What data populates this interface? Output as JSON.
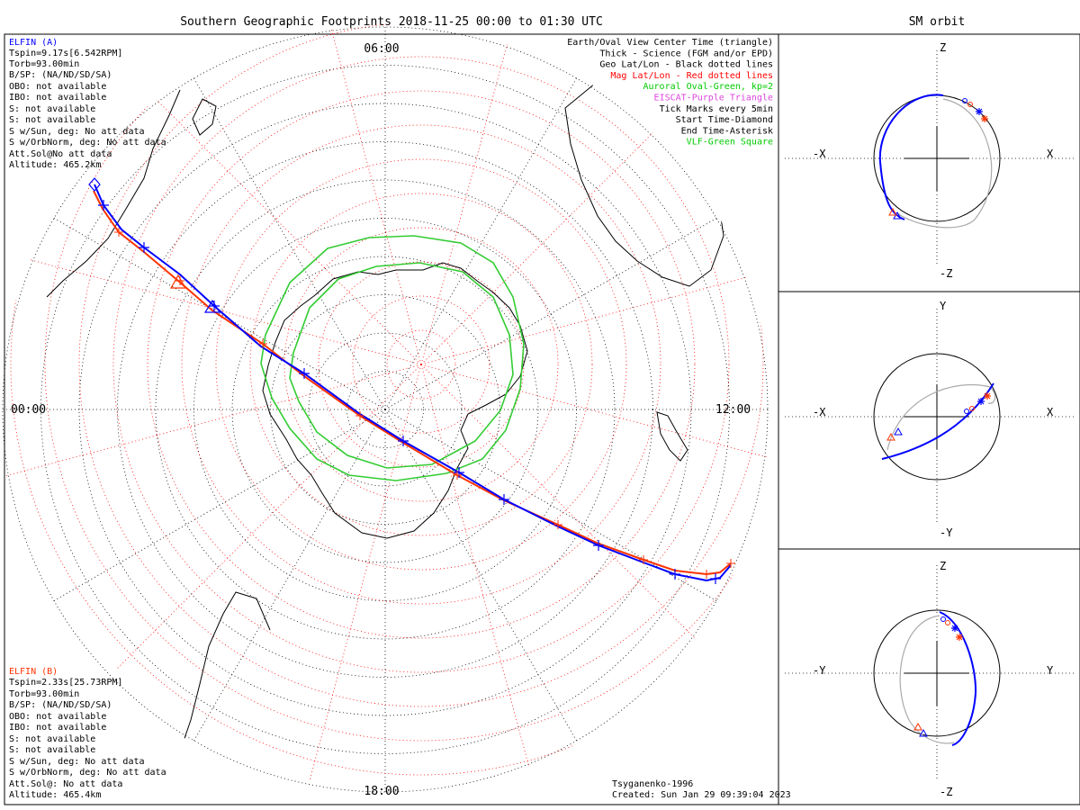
{
  "main_title": "Southern Geographic Footprints 2018-11-25 00:00 to 01:30 UTC",
  "side_title": "SM orbit",
  "clock_labels": {
    "top": "06:00",
    "left": "00:00",
    "right": "12:00",
    "bottom": "18:00"
  },
  "sat_a": {
    "name": "ELFIN (A)",
    "lines": [
      "Tspin=9.17s[6.542RPM]",
      "Torb=93.00min",
      "B/SP: (NA/ND/SD/SA)",
      "OBO: not available",
      "IBO: not available",
      "S: not available",
      "S: not available",
      "S w/Sun, deg: No att data",
      "S w/OrbNorm, deg: No att data",
      "Att.Sol@No att data",
      "Altitude: 465.2km"
    ]
  },
  "sat_b": {
    "name": "ELFIN (B)",
    "lines": [
      "Tspin=2.33s[25.73RPM]",
      "Torb=93.00min",
      "B/SP: (NA/ND/SD/SA)",
      "OBO: not available",
      "IBO: not available",
      "S: not available",
      "S: not available",
      "S w/Sun, deg: No att data",
      "S w/OrbNorm, deg: No att data",
      "Att.Sol@: No att data",
      "Altitude: 465.4km"
    ]
  },
  "legend": [
    {
      "text": "Earth/Oval View Center Time (triangle)",
      "color": "#000000"
    },
    {
      "text": "Thick - Science (FGM and/or EPD)",
      "color": "#000000"
    },
    {
      "text": "Geo Lat/Lon - Black dotted lines",
      "color": "#000000"
    },
    {
      "text": "Mag Lat/Lon - Red dotted lines",
      "color": "#ff0000"
    },
    {
      "text": "Auroral Oval-Green, kp=2",
      "color": "#00cc00"
    },
    {
      "text": "EISCAT-Purple Triangle",
      "color": "#dd44dd"
    },
    {
      "text": "Tick Marks every 5min",
      "color": "#000000"
    },
    {
      "text": "Start Time-Diamond",
      "color": "#000000"
    },
    {
      "text": "End Time-Asterisk",
      "color": "#000000"
    },
    {
      "text": "VLF-Green Square",
      "color": "#00cc00"
    }
  ],
  "footer": {
    "model": "Tsyganenko-1996",
    "created": "Created: Sun Jan 29 09:39:04 2023"
  },
  "orbit_panels": [
    {
      "top": "Z",
      "bottom": "-Z",
      "left": "-X",
      "right": "X"
    },
    {
      "top": "Y",
      "bottom": "-Y",
      "left": "-X",
      "right": "X"
    },
    {
      "top": "Z",
      "bottom": "-Z",
      "left": "-Y",
      "right": "Y"
    }
  ],
  "colors": {
    "sat_a": "#0000ff",
    "sat_b": "#ff3300",
    "geo_grid": "#000000",
    "mag_grid": "#ff0000",
    "oval": "#33cc33",
    "orbit_back": "#aaaaaa"
  }
}
